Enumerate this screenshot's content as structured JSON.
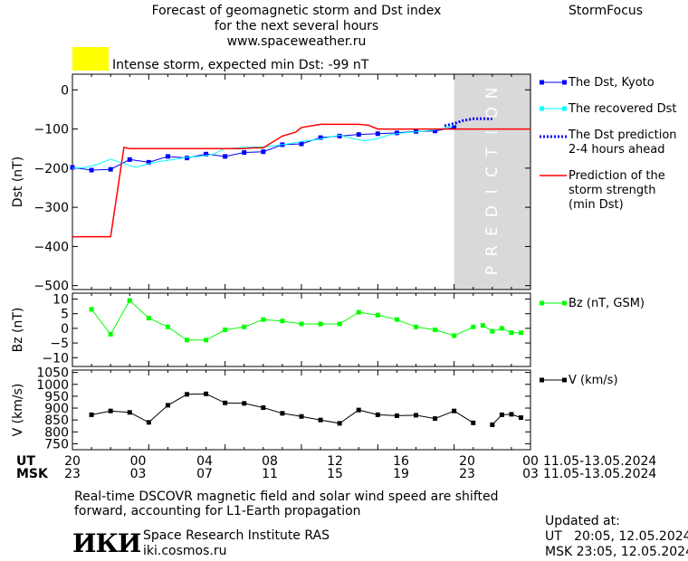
{
  "header": {
    "title_line1": "Forecast of geomagnetic storm and Dst index",
    "title_line2": "for the next several hours",
    "url": "www.spaceweather.ru",
    "brand": "StormFocus",
    "storm_text": "Intense storm, expected min Dst: -99 nT",
    "storm_color": "#ffff00"
  },
  "legend": {
    "dst_kyoto": "The Dst, Kyoto",
    "dst_recovered": "The recovered Dst",
    "dst_prediction_l1": "The Dst prediction",
    "dst_prediction_l2": "2-4 hours ahead",
    "storm_strength_l1": "Prediction of the",
    "storm_strength_l2": "storm strength",
    "storm_strength_l3": "(min Dst)",
    "bz": "Bz (nT, GSM)",
    "v": "V (km/s)"
  },
  "colors": {
    "dst_kyoto": "#0000ff",
    "dst_recovered": "#00ffff",
    "dst_prediction": "#0000ff",
    "storm_strength": "#ff0000",
    "bz": "#00ff00",
    "v": "#000000",
    "prediction_zone": "#d9d9d9"
  },
  "prediction_label": "PREDICTION",
  "time_axis": {
    "ut_label": "UT",
    "msk_label": "MSK",
    "ut_ticks": [
      "20",
      "00",
      "04",
      "08",
      "12",
      "16",
      "20",
      "00"
    ],
    "msk_ticks": [
      "23",
      "03",
      "07",
      "11",
      "15",
      "19",
      "23",
      "03"
    ],
    "date_range_ut": "11.05-13.05.2024",
    "date_range_msk": "11.05-13.05.2024"
  },
  "footer": {
    "note_line1": "Real-time DSCOVR magnetic field and solar wind speed are shifted",
    "note_line2": "forward, accounting for L1-Earth propagation",
    "updated_label": "Updated at:",
    "updated_ut": "UT   20:05, 12.05.2024",
    "updated_msk": "MSK 23:05, 12.05.2024",
    "institute": "Space Research Institute RAS",
    "institute_url": "iki.cosmos.ru",
    "logo_text": "ИКИ"
  },
  "chart_data": [
    {
      "type": "line",
      "ylabel": "Dst (nT)",
      "ylim": [
        -510,
        40
      ],
      "yticks": [
        0,
        -100,
        -200,
        -300,
        -400,
        -500
      ],
      "xlim": [
        20,
        44
      ],
      "prediction_zone": [
        40,
        44
      ],
      "series": [
        {
          "name": "The Dst, Kyoto",
          "marker": "square",
          "x": [
            20,
            21,
            22,
            23,
            24,
            25,
            26,
            27,
            28,
            29,
            30,
            31,
            32,
            33,
            34,
            35,
            36,
            37,
            38,
            39,
            40
          ],
          "y": [
            -198,
            -205,
            -203,
            -178,
            -185,
            -170,
            -174,
            -164,
            -170,
            -160,
            -158,
            -140,
            -138,
            -122,
            -118,
            -114,
            -112,
            -110,
            -106,
            -105,
            -96
          ]
        },
        {
          "name": "The recovered Dst",
          "x": [
            20,
            20.67,
            21.33,
            22,
            22.67,
            23.33,
            24,
            24.67,
            25.33,
            26,
            26.67,
            27.33,
            28,
            28.67,
            29.33,
            30,
            30.67,
            31.33,
            32,
            32.67,
            33.33,
            34,
            34.67,
            35.33,
            36,
            36.67,
            37.33,
            38,
            38.67,
            39.33,
            40
          ],
          "y": [
            -200,
            -198,
            -190,
            -177,
            -188,
            -198,
            -188,
            -182,
            -178,
            -172,
            -170,
            -165,
            -150,
            -148,
            -146,
            -146,
            -142,
            -138,
            -132,
            -128,
            -122,
            -116,
            -124,
            -130,
            -124,
            -114,
            -110,
            -107,
            -104,
            -100,
            -90
          ]
        },
        {
          "name": "The Dst prediction",
          "style": "dotted",
          "x": [
            39.5,
            40,
            40.5,
            41,
            41.5,
            42
          ],
          "y": [
            -92,
            -86,
            -78,
            -74,
            -74,
            -74
          ]
        },
        {
          "name": "Prediction of the storm strength (min Dst)",
          "step": true,
          "x": [
            20,
            22,
            22.7,
            23,
            26,
            27,
            28,
            29,
            29.5,
            30,
            31,
            31.7,
            32,
            33,
            35,
            35.5,
            36,
            38,
            44
          ],
          "y": [
            -375,
            -375,
            -147,
            -150,
            -150,
            -150,
            -150,
            -150,
            -148,
            -148,
            -118,
            -108,
            -96,
            -88,
            -88,
            -90,
            -100,
            -100,
            -100
          ]
        }
      ]
    },
    {
      "type": "line",
      "ylabel": "Bz (nT)",
      "ylim": [
        -13,
        12
      ],
      "yticks": [
        10,
        5,
        0,
        -5,
        -10
      ],
      "xlim": [
        20,
        44
      ],
      "series": [
        {
          "name": "Bz (nT, GSM)",
          "marker": "square",
          "x": [
            21,
            22,
            23,
            24,
            25,
            26,
            27,
            28,
            29,
            30,
            31,
            32,
            33,
            34,
            35,
            36,
            37,
            38,
            39,
            40,
            41
          ],
          "y": [
            6.5,
            -2,
            9.5,
            3.5,
            0.5,
            -4,
            -4,
            -0.5,
            0.5,
            3,
            2.5,
            1.5,
            1.5,
            1.5,
            5.5,
            4.5,
            3,
            0.5,
            -0.5,
            -2.5,
            0.5
          ]
        },
        {
          "name": "Bz (nT, GSM)",
          "marker": "square",
          "x": [
            41.5,
            42,
            42.5,
            43,
            43.5
          ],
          "y": [
            1,
            -1,
            0,
            -1.5,
            -1.5
          ]
        }
      ]
    },
    {
      "type": "line",
      "ylabel": "V (km/s)",
      "ylim": [
        725,
        1060
      ],
      "yticks": [
        1050,
        1000,
        950,
        900,
        850,
        800,
        750
      ],
      "xlim": [
        20,
        44
      ],
      "series": [
        {
          "name": "V (km/s)",
          "marker": "square",
          "x": [
            21,
            22,
            23,
            24,
            25,
            26,
            27,
            28,
            29,
            30,
            31,
            32,
            33,
            34,
            35,
            36,
            37,
            38,
            39,
            40,
            41
          ],
          "y": [
            872,
            888,
            882,
            840,
            912,
            958,
            960,
            922,
            920,
            902,
            878,
            865,
            850,
            836,
            892,
            872,
            868,
            870,
            856,
            888,
            838
          ]
        },
        {
          "name": "V (km/s)",
          "marker": "square",
          "x": [
            42,
            42.5,
            43,
            43.5
          ],
          "y": [
            830,
            872,
            874,
            860
          ]
        }
      ]
    }
  ]
}
